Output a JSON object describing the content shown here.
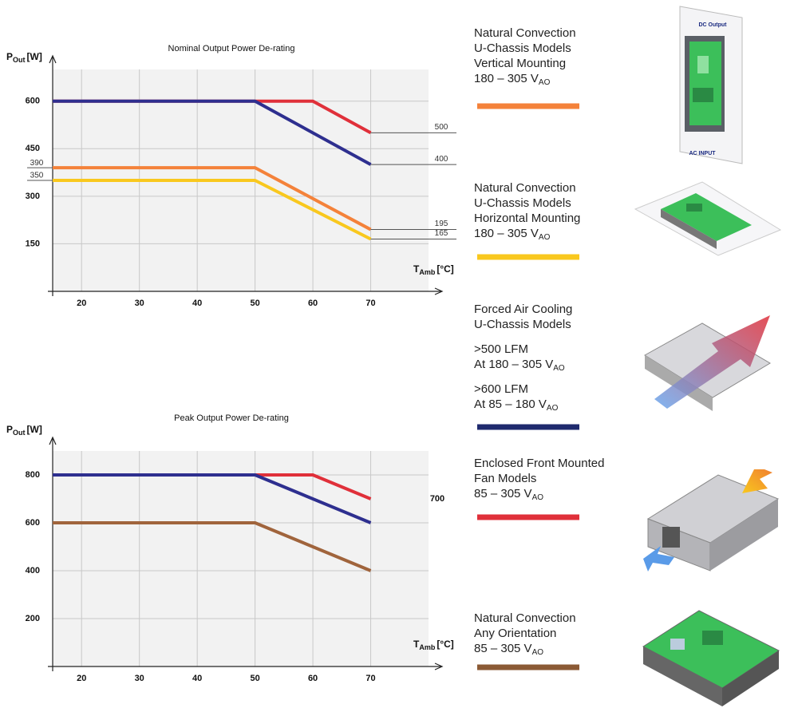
{
  "chart_data": [
    {
      "type": "line",
      "title": "Nominal Output Power De-rating",
      "y_label": {
        "symbol": "P",
        "sub": "Out",
        "unit": "[W]"
      },
      "x_label": {
        "symbol": "T",
        "sub": "Amb",
        "unit": "[°C]"
      },
      "xlim": [
        15,
        80
      ],
      "xticks": [
        20,
        30,
        40,
        50,
        60,
        70
      ],
      "ylim": [
        0,
        700
      ],
      "yticks": [
        150,
        300,
        450,
        600
      ],
      "grid": true,
      "series": [
        {
          "color": "#e0303a",
          "x": [
            15,
            50,
            60,
            70
          ],
          "values": [
            600,
            600,
            600,
            500
          ]
        },
        {
          "color": "#2e2f8f",
          "x": [
            15,
            50,
            70
          ],
          "values": [
            600,
            600,
            400
          ]
        },
        {
          "color": "#f4823a",
          "x": [
            15,
            50,
            70
          ],
          "values": [
            390,
            390,
            195
          ]
        },
        {
          "color": "#f9c81e",
          "x": [
            15,
            50,
            70
          ],
          "values": [
            350,
            350,
            165
          ]
        }
      ],
      "start_labels": [
        390,
        350
      ],
      "end_labels": [
        500,
        400,
        195,
        165
      ],
      "leader_lines": true
    },
    {
      "type": "line",
      "title": "Peak Output Power De-rating",
      "y_label": {
        "symbol": "P",
        "sub": "Out",
        "unit": "[W]"
      },
      "x_label": {
        "symbol": "T",
        "sub": "Amb",
        "unit": "[°C]"
      },
      "xlim": [
        15,
        80
      ],
      "xticks": [
        20,
        30,
        40,
        50,
        60,
        70
      ],
      "ylim": [
        0,
        900
      ],
      "yticks": [
        200,
        400,
        600,
        800
      ],
      "grid": true,
      "series": [
        {
          "color": "#e0303a",
          "x": [
            15,
            50,
            60,
            70
          ],
          "values": [
            800,
            800,
            800,
            700
          ]
        },
        {
          "color": "#2e2f8f",
          "x": [
            15,
            50,
            70
          ],
          "values": [
            800,
            800,
            600
          ]
        },
        {
          "color": "#a0643c",
          "x": [
            15,
            50,
            70
          ],
          "values": [
            600,
            600,
            400
          ]
        }
      ],
      "end_labels": [
        700
      ],
      "leader_lines": false
    }
  ],
  "legend": [
    {
      "color": "#f4823a",
      "blocks": [
        [
          "Natural Convection",
          "U-Chassis Models",
          "Vertical Mounting",
          {
            "text": "180 – 305 V",
            "sub": "AO"
          }
        ]
      ]
    },
    {
      "color": "#f9c81e",
      "blocks": [
        [
          "Natural Convection",
          "U-Chassis Models",
          "Horizontal Mounting",
          {
            "text": "180 – 305 V",
            "sub": "AO"
          }
        ]
      ]
    },
    {
      "color": "#1f2a6e",
      "blocks": [
        [
          "Forced Air Cooling",
          "U-Chassis Models"
        ],
        [
          ">500 LFM",
          {
            "text": " At 180 – 305 V",
            "sub": "AO"
          }
        ],
        [
          ">600 LFM",
          {
            "text": "At 85 – 180 V",
            "sub": "AO"
          }
        ]
      ]
    },
    {
      "color": "#e0303a",
      "blocks": [
        [
          "Enclosed Front Mounted",
          "Fan Models",
          {
            "text": "85 – 305 V",
            "sub": "AO"
          }
        ]
      ]
    },
    {
      "color": "#8b5a35",
      "blocks": [
        [
          "Natural Convection",
          "Any Orientation",
          {
            "text": "85 – 305 V",
            "sub": "AO"
          }
        ]
      ]
    }
  ],
  "image_labels": {
    "top": "DC Output",
    "bottom": "AC INPUT"
  }
}
